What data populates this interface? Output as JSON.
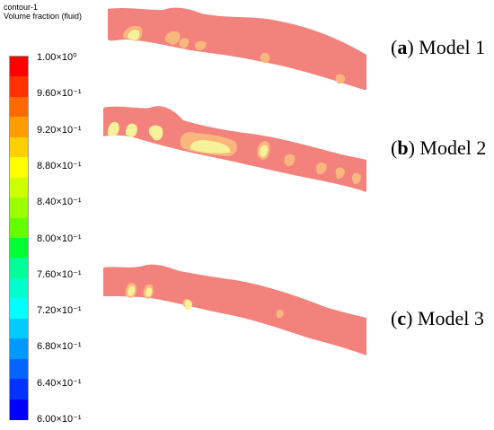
{
  "header": {
    "line1": "contour-1",
    "line2": "Volume fraction (fluid)"
  },
  "legend": {
    "colors": [
      "#ff0000",
      "#ff3200",
      "#ff6a00",
      "#ff9d00",
      "#ffcf00",
      "#ffff00",
      "#ceff00",
      "#9cff00",
      "#63ff00",
      "#00ff33",
      "#00ff99",
      "#00ffcc",
      "#00ffff",
      "#00ccff",
      "#0099ff",
      "#0066ff",
      "#0033ff",
      "#0000ff"
    ],
    "ticks": [
      {
        "label": "1.00×10⁰"
      },
      {
        "label": "9.60×10⁻¹"
      },
      {
        "label": "9.20×10⁻¹"
      },
      {
        "label": "8.80×10⁻¹"
      },
      {
        "label": "8.40×10⁻¹"
      },
      {
        "label": "8.00×10⁻¹"
      },
      {
        "label": "7.60×10⁻¹"
      },
      {
        "label": "7.20×10⁻¹"
      },
      {
        "label": "6.80×10⁻¹"
      },
      {
        "label": "6.40×10⁻¹"
      },
      {
        "label": "6.00×10⁻¹"
      }
    ]
  },
  "panels": [
    {
      "letter": "a",
      "name": " Model 1",
      "open": "(",
      "close": ")"
    },
    {
      "letter": "b",
      "name": " Model 2",
      "open": "(",
      "close": ")"
    },
    {
      "letter": "c",
      "name": " Model 3",
      "open": "(",
      "close": ")"
    }
  ],
  "colors": {
    "fluid": "#f3827d",
    "yellow_zone": "#f6f29a",
    "orange_zone": "#f9b67d"
  }
}
